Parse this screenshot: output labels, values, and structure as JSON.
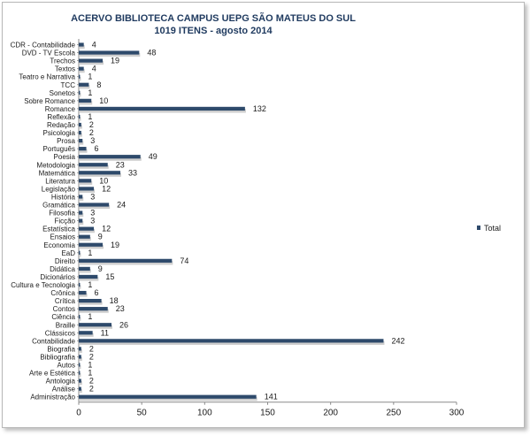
{
  "chart_data": {
    "type": "bar",
    "orientation": "horizontal",
    "title": "ACERVO BIBLIOTECA CAMPUS UEPG SÃO MATEUS DO SUL",
    "subtitle": "1019  ITENS - agosto 2014",
    "xlim": [
      0,
      300
    ],
    "xticks": [
      0,
      50,
      100,
      150,
      200,
      250,
      300
    ],
    "grid": false,
    "legend_position": "right",
    "colors": {
      "bar": "#2e4a6b",
      "shadow": "#bdbdbd",
      "title": "#1f3a5f"
    },
    "categories": [
      "CDR - Contabilidade",
      "DVD - TV Escola",
      "Trechos",
      "Textos",
      "Teatro e Narrativa",
      "TCC",
      "Sonetos",
      "Sobre Romance",
      "Romance",
      "Reflexão",
      "Redação",
      "Psicologia",
      "Prosa",
      "Português",
      "Poesia",
      "Metodologia",
      "Matemática",
      "Literatura",
      "Legislação",
      "História",
      "Gramática",
      "Filosofia",
      "Ficção",
      "Estatística",
      "Ensaios",
      "Economia",
      "EaD",
      "Direito",
      "Didática",
      "Dicionários",
      "Cultura e Tecnologia",
      "Crônica",
      "Crítica",
      "Contos",
      "Ciência",
      "Braille",
      "Clássicos",
      "Contabilidade",
      "Biografia",
      "Bibliografia",
      "Autos",
      "Arte e Estética",
      "Antologia",
      "Análise",
      "Administração"
    ],
    "series": [
      {
        "name": "Total",
        "values": [
          4,
          48,
          19,
          4,
          1,
          8,
          1,
          10,
          132,
          1,
          2,
          2,
          3,
          6,
          49,
          23,
          33,
          10,
          12,
          3,
          24,
          3,
          3,
          12,
          9,
          19,
          1,
          74,
          9,
          15,
          1,
          6,
          18,
          23,
          1,
          26,
          11,
          242,
          2,
          2,
          1,
          1,
          2,
          2,
          141
        ]
      }
    ]
  }
}
